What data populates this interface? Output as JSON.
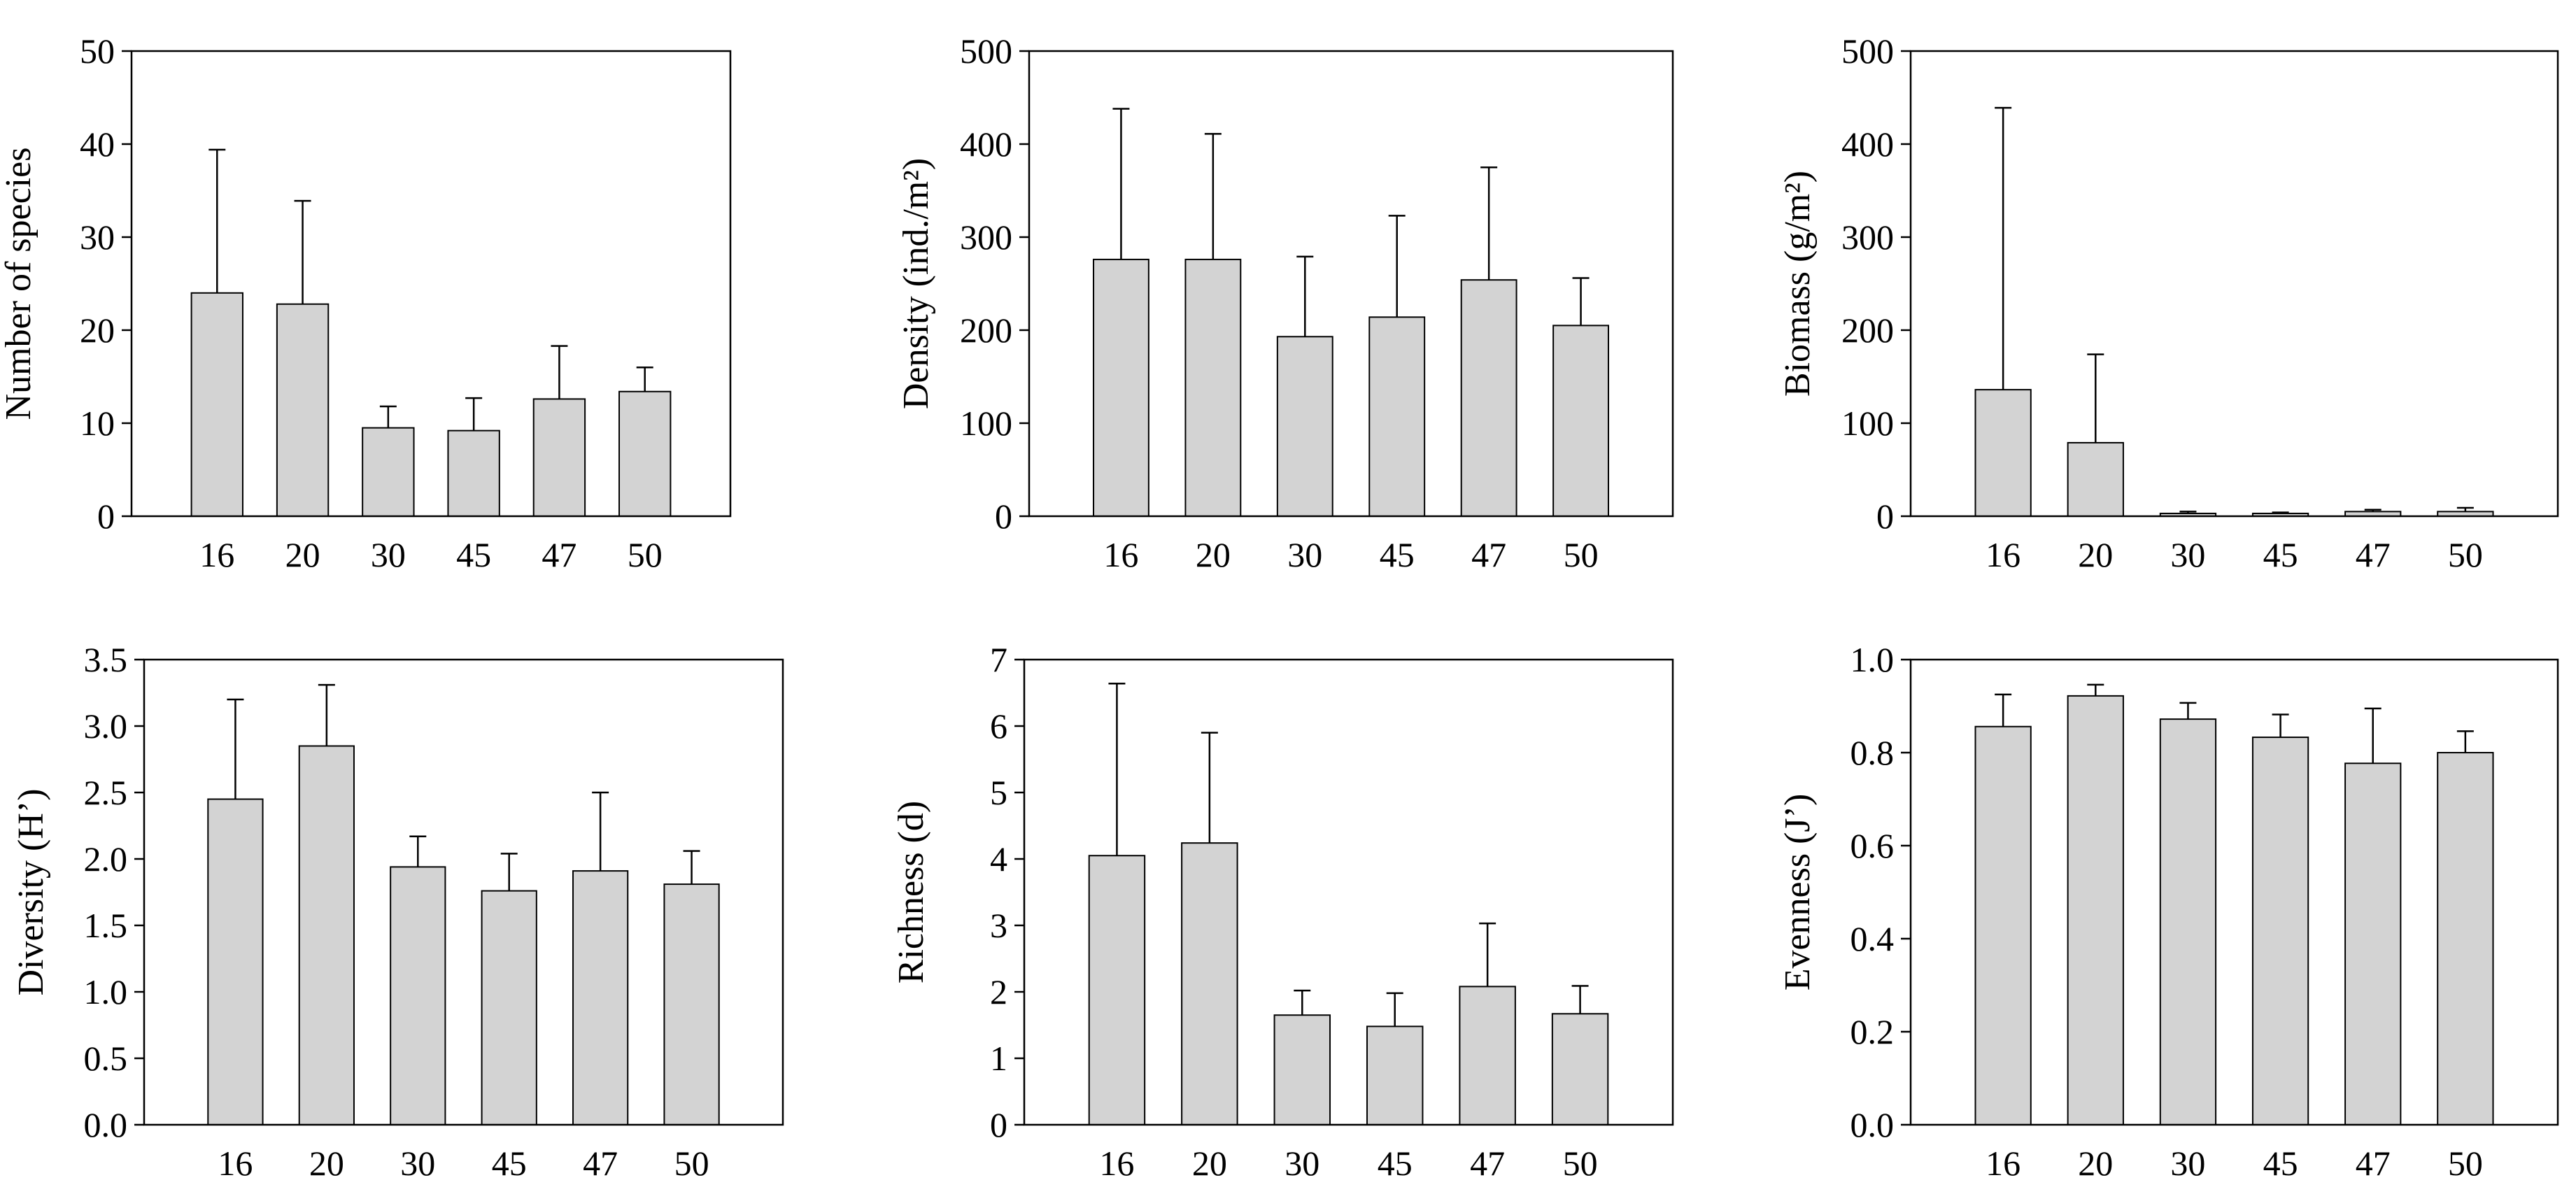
{
  "colors": {
    "bar_fill": "#d3d3d3",
    "bar_stroke": "#000000",
    "axis": "#000000",
    "background": "#ffffff"
  },
  "chart_data": [
    {
      "type": "bar",
      "title": "",
      "categories": [
        "16",
        "20",
        "30",
        "45",
        "47",
        "50"
      ],
      "values": [
        24,
        22.8,
        9.5,
        9.2,
        12.6,
        13.4
      ],
      "error_upper": [
        39.4,
        33.9,
        11.8,
        12.7,
        18.3,
        16.0
      ],
      "xlabel": "",
      "ylabel": "Number of species",
      "ylim": [
        0,
        50
      ],
      "yticks": [
        "0",
        "10",
        "20",
        "30",
        "40",
        "50"
      ]
    },
    {
      "type": "bar",
      "title": "",
      "categories": [
        "16",
        "20",
        "30",
        "45",
        "47",
        "50"
      ],
      "values": [
        276,
        276,
        193,
        214,
        254,
        205
      ],
      "error_upper": [
        438,
        411,
        279,
        323,
        375,
        256
      ],
      "xlabel": "",
      "ylabel": "Density (ind./m²)",
      "ylim": [
        0,
        500
      ],
      "yticks": [
        "0",
        "100",
        "200",
        "300",
        "400",
        "500"
      ]
    },
    {
      "type": "bar",
      "title": "",
      "categories": [
        "16",
        "20",
        "30",
        "45",
        "47",
        "50"
      ],
      "values": [
        136,
        79,
        3,
        3,
        5,
        5
      ],
      "error_upper": [
        439,
        174,
        5,
        4,
        7,
        9
      ],
      "xlabel": "",
      "ylabel": "Biomass (g/m²)",
      "ylim": [
        0,
        500
      ],
      "yticks": [
        "0",
        "100",
        "200",
        "300",
        "400",
        "500"
      ]
    },
    {
      "type": "bar",
      "title": "",
      "categories": [
        "16",
        "20",
        "30",
        "45",
        "47",
        "50"
      ],
      "values": [
        2.45,
        2.85,
        1.94,
        1.76,
        1.91,
        1.81
      ],
      "error_upper": [
        3.2,
        3.31,
        2.17,
        2.04,
        2.5,
        2.06
      ],
      "xlabel": "",
      "ylabel": "Diversity (H’)",
      "ylim": [
        0,
        3.5
      ],
      "yticks": [
        "0.0",
        "0.5",
        "1.0",
        "1.5",
        "2.0",
        "2.5",
        "3.0",
        "3.5"
      ]
    },
    {
      "type": "bar",
      "title": "",
      "categories": [
        "16",
        "20",
        "30",
        "45",
        "47",
        "50"
      ],
      "values": [
        4.05,
        4.24,
        1.65,
        1.48,
        2.08,
        1.67
      ],
      "error_upper": [
        6.64,
        5.9,
        2.02,
        1.98,
        3.03,
        2.09
      ],
      "xlabel": "",
      "ylabel": "Richness (d)",
      "ylim": [
        0,
        7
      ],
      "yticks": [
        "0",
        "1",
        "2",
        "3",
        "4",
        "5",
        "6",
        "7"
      ]
    },
    {
      "type": "bar",
      "title": "",
      "categories": [
        "16",
        "20",
        "30",
        "45",
        "47",
        "50"
      ],
      "values": [
        0.856,
        0.922,
        0.872,
        0.833,
        0.777,
        0.8
      ],
      "error_upper": [
        0.925,
        0.946,
        0.907,
        0.882,
        0.895,
        0.846
      ],
      "xlabel": "",
      "ylabel": "Evenness (J’)",
      "ylim": [
        0,
        1
      ],
      "yticks": [
        "0.0",
        "0.2",
        "0.4",
        "0.6",
        "0.8",
        "1.0"
      ]
    }
  ]
}
